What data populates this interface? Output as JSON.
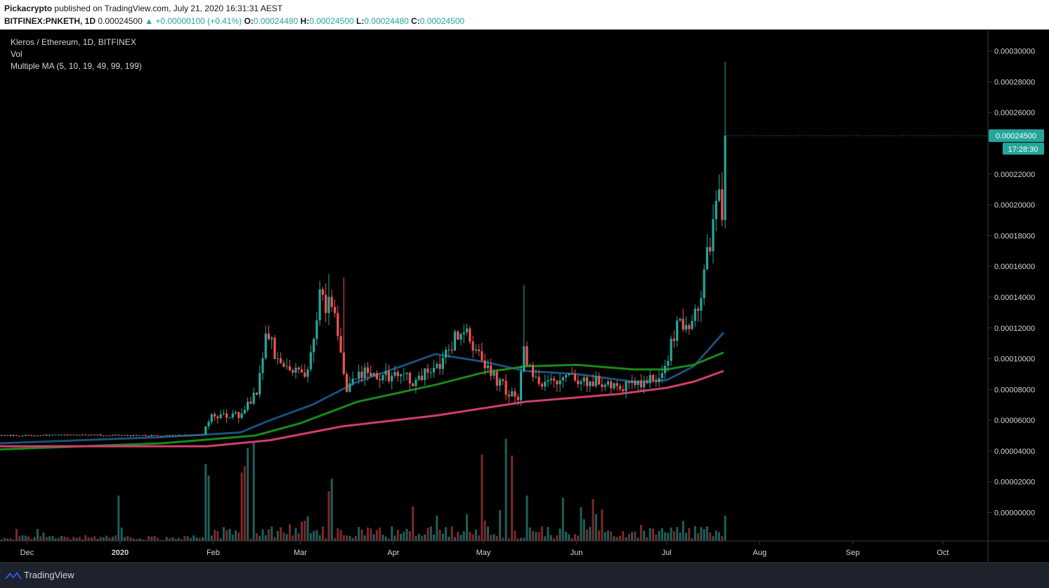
{
  "publish": {
    "author": "Pickacrypto",
    "text": "published on TradingView.com, July 21, 2020 16:31:31 AEST"
  },
  "ticker": {
    "symbol": "BITFINEX:PNKETH, 1D",
    "last": "0.00024500",
    "change": "▲ +0.00000100 (+0.41%)",
    "o_label": "O:",
    "o": "0.00024480",
    "h_label": "H:",
    "h": "0.00024500",
    "l_label": "L:",
    "l": "0.00024480",
    "c_label": "C:",
    "c": "0.00024500"
  },
  "legend": {
    "title": "Kleros / Ethereum, 1D, BITFINEX",
    "vol": "Vol",
    "ma": "Multiple MA (5, 10, 19, 49, 99, 199)"
  },
  "price_tag": {
    "value": "0.00024500",
    "countdown": "17:28:30"
  },
  "footer": {
    "brand": "TradingView"
  },
  "colors": {
    "up": "#26a69a",
    "down": "#ef5350",
    "vol_up": "#1f5f5a",
    "vol_down": "#7a2a2a",
    "ma49": "#1b4f7a",
    "ma99": "#1a8a1a",
    "ma199": "#d03f6b",
    "background": "#000000",
    "axis_text": "#d1d4dc",
    "price_tag_bg": "#26a69a"
  },
  "chart_data": {
    "type": "candlestick",
    "title": "Kleros / Ethereum, 1D, BITFINEX",
    "x_ticks": [
      {
        "label": "Dec",
        "date": "2019-12-01"
      },
      {
        "label": "2020",
        "date": "2020-01-01",
        "bold": true
      },
      {
        "label": "Feb",
        "date": "2020-02-01"
      },
      {
        "label": "Mar",
        "date": "2020-03-01"
      },
      {
        "label": "Apr",
        "date": "2020-04-01"
      },
      {
        "label": "May",
        "date": "2020-05-01"
      },
      {
        "label": "Jun",
        "date": "2020-06-01"
      },
      {
        "label": "Jul",
        "date": "2020-07-01"
      },
      {
        "label": "Aug",
        "date": "2020-08-01"
      },
      {
        "label": "Sep",
        "date": "2020-09-01"
      },
      {
        "label": "Oct",
        "date": "2020-10-01"
      }
    ],
    "y_ticks": [
      "0.00030000",
      "0.00028000",
      "0.00026000",
      "0.00022000",
      "0.00020000",
      "0.00018000",
      "0.00016000",
      "0.00014000",
      "0.00012000",
      "0.00010000",
      "0.00008000",
      "0.00006000",
      "0.00004000",
      "0.00002000",
      "0.00000000"
    ],
    "ylim": [
      -1.85e-05,
      0.000314
    ],
    "xlim": [
      "2019-11-22",
      "2020-10-16"
    ],
    "anchors": [
      [
        "2019-11-22",
        5e-05
      ],
      [
        "2019-12-15",
        5.05e-05
      ],
      [
        "2020-01-10",
        5e-05
      ],
      [
        "2020-01-28",
        5.05e-05
      ],
      [
        "2020-01-30",
        6.2e-05
      ],
      [
        "2020-02-10",
        6.4e-05
      ],
      [
        "2020-02-15",
        8e-05
      ],
      [
        "2020-02-18",
        0.000115
      ],
      [
        "2020-02-24",
        9.5e-05
      ],
      [
        "2020-03-03",
        9.2e-05
      ],
      [
        "2020-03-07",
        0.00014
      ],
      [
        "2020-03-12",
        0.00013
      ],
      [
        "2020-03-16",
        8e-05
      ],
      [
        "2020-03-22",
        9.2e-05
      ],
      [
        "2020-04-01",
        8.8e-05
      ],
      [
        "2020-04-08",
        8.6e-05
      ],
      [
        "2020-04-15",
        9.5e-05
      ],
      [
        "2020-04-23",
        0.00012
      ],
      [
        "2020-04-29",
        0.000105
      ],
      [
        "2020-05-05",
        8.5e-05
      ],
      [
        "2020-05-12",
        7.4e-05
      ],
      [
        "2020-05-14",
        0.000105
      ],
      [
        "2020-05-18",
        8.6e-05
      ],
      [
        "2020-06-01",
        8.6e-05
      ],
      [
        "2020-06-20",
        8.2e-05
      ],
      [
        "2020-06-28",
        8.8e-05
      ],
      [
        "2020-07-01",
        0.0001
      ],
      [
        "2020-07-04",
        0.000125
      ],
      [
        "2020-07-08",
        0.000118
      ],
      [
        "2020-07-11",
        0.000135
      ],
      [
        "2020-07-15",
        0.000175
      ],
      [
        "2020-07-18",
        0.00021
      ],
      [
        "2020-07-19",
        0.000195
      ],
      [
        "2020-07-20",
        0.000245
      ]
    ],
    "spikes": [
      {
        "date": "2020-07-20",
        "high": 0.000293
      },
      {
        "date": "2020-05-14",
        "high": 0.000148
      },
      {
        "date": "2020-03-10",
        "high": 0.000155
      },
      {
        "date": "2020-03-15",
        "high": 0.000153
      }
    ],
    "ma_series": [
      {
        "name": "MA 49",
        "points": [
          [
            "2019-11-22",
            4.5e-05
          ],
          [
            "2020-01-15",
            4.9e-05
          ],
          [
            "2020-02-10",
            5.2e-05
          ],
          [
            "2020-02-20",
            6e-05
          ],
          [
            "2020-03-05",
            7e-05
          ],
          [
            "2020-03-20",
            8.5e-05
          ],
          [
            "2020-04-05",
            9.6e-05
          ],
          [
            "2020-04-15",
            0.000103
          ],
          [
            "2020-05-01",
            9.8e-05
          ],
          [
            "2020-05-15",
            9.2e-05
          ],
          [
            "2020-06-01",
            9e-05
          ],
          [
            "2020-06-20",
            8.5e-05
          ],
          [
            "2020-07-01",
            8.6e-05
          ],
          [
            "2020-07-10",
            9.5e-05
          ],
          [
            "2020-07-20",
            0.000117
          ]
        ]
      },
      {
        "name": "MA 99",
        "points": [
          [
            "2019-11-22",
            4.1e-05
          ],
          [
            "2020-01-15",
            4.5e-05
          ],
          [
            "2020-02-15",
            5e-05
          ],
          [
            "2020-03-01",
            5.8e-05
          ],
          [
            "2020-03-20",
            7.2e-05
          ],
          [
            "2020-04-15",
            8.3e-05
          ],
          [
            "2020-05-01",
            9.1e-05
          ],
          [
            "2020-05-15",
            9.5e-05
          ],
          [
            "2020-06-01",
            9.6e-05
          ],
          [
            "2020-06-20",
            9.3e-05
          ],
          [
            "2020-07-01",
            9.3e-05
          ],
          [
            "2020-07-10",
            9.6e-05
          ],
          [
            "2020-07-20",
            0.000104
          ]
        ]
      },
      {
        "name": "MA 199",
        "points": [
          [
            "2019-11-22",
            4.3e-05
          ],
          [
            "2020-01-30",
            4.3e-05
          ],
          [
            "2020-02-20",
            4.7e-05
          ],
          [
            "2020-03-15",
            5.6e-05
          ],
          [
            "2020-04-15",
            6.3e-05
          ],
          [
            "2020-05-15",
            7.2e-05
          ],
          [
            "2020-06-15",
            7.7e-05
          ],
          [
            "2020-07-01",
            8.1e-05
          ],
          [
            "2020-07-10",
            8.5e-05
          ],
          [
            "2020-07-20",
            9.2e-05
          ]
        ]
      }
    ],
    "volume": {
      "ylim": [
        0,
        1
      ],
      "peaks": [
        {
          "date": "2019-12-31",
          "value": 0.43,
          "up": true
        },
        {
          "date": "2020-01-29",
          "value": 0.73,
          "up": true
        },
        {
          "date": "2020-01-30",
          "value": 0.62,
          "up": true
        },
        {
          "date": "2020-02-12",
          "value": 0.88,
          "up": true
        },
        {
          "date": "2020-02-14",
          "value": 0.95,
          "up": true
        },
        {
          "date": "2020-02-11",
          "value": 0.71,
          "up": false
        },
        {
          "date": "2020-02-10",
          "value": 0.65,
          "up": false
        },
        {
          "date": "2020-03-11",
          "value": 0.59,
          "up": true
        },
        {
          "date": "2020-03-10",
          "value": 0.47,
          "up": false
        },
        {
          "date": "2020-04-30",
          "value": 0.82,
          "up": false
        },
        {
          "date": "2020-05-08",
          "value": 0.97,
          "up": true
        },
        {
          "date": "2020-05-10",
          "value": 0.81,
          "up": false
        },
        {
          "date": "2020-05-15",
          "value": 0.43,
          "up": true
        },
        {
          "date": "2020-05-27",
          "value": 0.41,
          "up": true
        },
        {
          "date": "2020-07-06",
          "value": 0.19,
          "up": true
        },
        {
          "date": "2020-07-20",
          "value": 0.24,
          "up": true
        }
      ]
    }
  }
}
